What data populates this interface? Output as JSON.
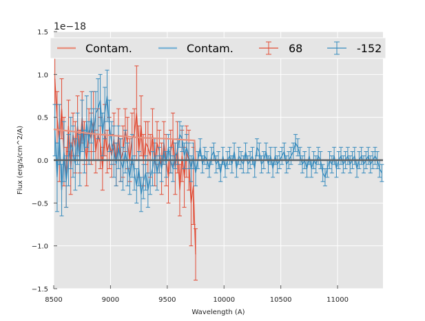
{
  "chart_data": {
    "type": "line",
    "title": "",
    "xlabel": "Wavelength (A)",
    "ylabel": "Flux (erg/s/cm^2/A)",
    "y_offset_label": "1e−18",
    "xlim": [
      8500,
      11400
    ],
    "ylim": [
      -1.5,
      1.5
    ],
    "xticks": [
      8500,
      9000,
      9500,
      10000,
      10500,
      11000
    ],
    "xtick_labels": [
      "8500",
      "9000",
      "9500",
      "10000",
      "10500",
      "11000"
    ],
    "yticks": [
      -1.5,
      -1.0,
      -0.5,
      0.0,
      0.5,
      1.0,
      1.5
    ],
    "ytick_labels": [
      "−1.5",
      "−1.0",
      "−0.5",
      "0.0",
      "0.5",
      "1.0",
      "1.5"
    ],
    "grid": true,
    "legend_position": "top",
    "colors": {
      "red": "#E24A33",
      "blue": "#348ABD",
      "contam_red": "#E8917F",
      "contam_blue": "#7DB4D6",
      "zero": "#555555",
      "background": "#E5E5E5"
    },
    "legend": [
      {
        "label": "Contam.",
        "kind": "line",
        "color": "#E8917F"
      },
      {
        "label": "Contam.",
        "kind": "line",
        "color": "#7DB4D6"
      },
      {
        "label": "68",
        "kind": "errorbar",
        "color": "#E24A33"
      },
      {
        "label": "-152",
        "kind": "errorbar",
        "color": "#348ABD"
      }
    ],
    "series": [
      {
        "name": "68",
        "color": "#E24A33",
        "kind": "errorbar",
        "x": [
          8510,
          8530,
          8550,
          8570,
          8590,
          8610,
          8630,
          8650,
          8670,
          8690,
          8710,
          8730,
          8750,
          8770,
          8790,
          8810,
          8830,
          8850,
          8870,
          8890,
          8910,
          8930,
          8950,
          8970,
          8990,
          9010,
          9030,
          9050,
          9070,
          9090,
          9110,
          9130,
          9150,
          9170,
          9190,
          9210,
          9230,
          9250,
          9270,
          9290,
          9310,
          9330,
          9350,
          9370,
          9390,
          9410,
          9430,
          9450,
          9470,
          9490,
          9510,
          9530,
          9550,
          9570,
          9590,
          9610,
          9630,
          9650,
          9670,
          9690,
          9710,
          9730,
          9750
        ],
        "y": [
          0.95,
          0.5,
          0.2,
          0.6,
          0.1,
          -0.2,
          0.4,
          -0.1,
          0.3,
          0.15,
          0.4,
          0.1,
          0.5,
          0.2,
          0.0,
          0.35,
          0.25,
          0.45,
          0.1,
          0.3,
          0.2,
          -0.1,
          0.35,
          0.1,
          0.2,
          0.05,
          0.25,
          -0.05,
          0.3,
          0.0,
          0.1,
          0.35,
          0.2,
          0.0,
          0.25,
          0.3,
          0.55,
          0.1,
          0.4,
          0.0,
          0.2,
          0.15,
          0.05,
          0.3,
          -0.05,
          0.2,
          0.1,
          -0.1,
          0.2,
          0.0,
          -0.2,
          0.1,
          0.25,
          -0.1,
          0.15,
          -0.35,
          0.05,
          -0.2,
          0.1,
          0.0,
          -0.5,
          -0.3,
          -1.1
        ],
        "yerr": [
          0.3,
          0.3,
          0.45,
          0.35,
          0.4,
          0.35,
          0.3,
          0.3,
          0.25,
          0.3,
          0.35,
          0.25,
          0.3,
          0.25,
          0.3,
          0.25,
          0.3,
          0.35,
          0.25,
          0.3,
          0.3,
          0.25,
          0.3,
          0.25,
          0.3,
          0.25,
          0.3,
          0.25,
          0.3,
          0.25,
          0.3,
          0.25,
          0.3,
          0.25,
          0.3,
          0.3,
          0.55,
          0.3,
          0.35,
          0.3,
          0.25,
          0.3,
          0.25,
          0.3,
          0.25,
          0.25,
          0.25,
          0.3,
          0.25,
          0.3,
          0.3,
          0.25,
          0.3,
          0.3,
          0.3,
          0.3,
          0.3,
          0.35,
          0.3,
          0.35,
          0.5,
          0.45,
          0.3
        ]
      },
      {
        "name": "-152",
        "color": "#348ABD",
        "kind": "errorbar",
        "x": [
          8510,
          8530,
          8550,
          8570,
          8590,
          8610,
          8630,
          8650,
          8670,
          8690,
          8710,
          8730,
          8750,
          8770,
          8790,
          8810,
          8830,
          8850,
          8870,
          8890,
          8910,
          8930,
          8950,
          8970,
          8990,
          9010,
          9030,
          9050,
          9070,
          9090,
          9110,
          9130,
          9150,
          9170,
          9190,
          9210,
          9230,
          9250,
          9270,
          9290,
          9310,
          9330,
          9350,
          9370,
          9390,
          9410,
          9430,
          9450,
          9470,
          9490,
          9510,
          9530,
          9550,
          9570,
          9590,
          9610,
          9630,
          9650,
          9670,
          9690,
          9710,
          9730,
          9750,
          9770,
          9790,
          9810,
          9830,
          9850,
          9870,
          9890,
          9910,
          9930,
          9950,
          9970,
          9990,
          10010,
          10030,
          10050,
          10070,
          10090,
          10110,
          10130,
          10150,
          10170,
          10190,
          10210,
          10230,
          10250,
          10270,
          10290,
          10310,
          10330,
          10350,
          10370,
          10390,
          10410,
          10430,
          10450,
          10470,
          10490,
          10510,
          10530,
          10550,
          10570,
          10590,
          10610,
          10630,
          10650,
          10670,
          10690,
          10710,
          10730,
          10750,
          10770,
          10790,
          10810,
          10830,
          10850,
          10870,
          10890,
          10910,
          10930,
          10950,
          10970,
          10990,
          11010,
          11030,
          11050,
          11070,
          11090,
          11110,
          11130,
          11150,
          11170,
          11190,
          11210,
          11230,
          11250,
          11270,
          11290,
          11310,
          11330,
          11350,
          11370,
          11390
        ],
        "y": [
          0.35,
          -0.2,
          0.3,
          -0.35,
          0.1,
          -0.25,
          0.0,
          0.2,
          0.1,
          -0.05,
          0.25,
          0.0,
          0.4,
          0.1,
          0.45,
          0.2,
          0.5,
          0.3,
          0.55,
          0.6,
          0.7,
          0.3,
          0.55,
          0.75,
          0.4,
          0.2,
          0.1,
          -0.05,
          0.15,
          0.0,
          -0.1,
          0.1,
          -0.05,
          -0.2,
          0.05,
          -0.15,
          -0.3,
          -0.1,
          -0.4,
          -0.25,
          -0.15,
          -0.35,
          -0.2,
          -0.1,
          0.05,
          -0.15,
          0.0,
          -0.1,
          0.1,
          -0.05,
          0.15,
          0.0,
          -0.1,
          0.05,
          0.1,
          0.3,
          0.25,
          0.05,
          0.15,
          0.05,
          -0.1,
          0.05,
          -0.15,
          0.0,
          0.15,
          -0.05,
          0.05,
          0.0,
          -0.1,
          0.05,
          0.1,
          -0.05,
          0.0,
          -0.15,
          0.05,
          -0.1,
          0.0,
          0.05,
          -0.05,
          0.1,
          -0.1,
          0.05,
          0.0,
          -0.05,
          0.1,
          -0.05,
          0.0,
          0.05,
          -0.1,
          0.15,
          0.1,
          -0.05,
          0.0,
          0.1,
          -0.05,
          0.05,
          -0.1,
          0.05,
          -0.05,
          0.0,
          0.05,
          0.1,
          -0.05,
          0.0,
          0.05,
          0.1,
          0.2,
          0.15,
          0.05,
          -0.05,
          0.0,
          -0.1,
          0.05,
          -0.1,
          0.0,
          -0.05,
          0.05,
          0.0,
          -0.15,
          -0.2,
          -0.1,
          0.0,
          -0.05,
          0.05,
          -0.1,
          0.0,
          0.05,
          -0.05,
          0.0,
          0.05,
          -0.05,
          0.0,
          0.05,
          -0.1,
          0.0,
          0.05,
          -0.05,
          0.0,
          0.05,
          -0.05,
          0.0,
          0.05,
          0.0,
          -0.1,
          -0.15
        ],
        "yerr": [
          0.3,
          0.4,
          0.35,
          0.3,
          0.35,
          0.3,
          0.3,
          0.3,
          0.3,
          0.3,
          0.3,
          0.3,
          0.3,
          0.25,
          0.3,
          0.25,
          0.3,
          0.3,
          0.25,
          0.35,
          0.3,
          0.25,
          0.3,
          0.3,
          0.3,
          0.25,
          0.3,
          0.25,
          0.25,
          0.25,
          0.25,
          0.25,
          0.25,
          0.2,
          0.25,
          0.2,
          0.2,
          0.2,
          0.2,
          0.2,
          0.2,
          0.2,
          0.2,
          0.2,
          0.2,
          0.2,
          0.15,
          0.15,
          0.15,
          0.15,
          0.15,
          0.15,
          0.15,
          0.15,
          0.15,
          0.15,
          0.15,
          0.15,
          0.15,
          0.15,
          0.15,
          0.15,
          0.15,
          0.1,
          0.1,
          0.1,
          0.1,
          0.1,
          0.1,
          0.1,
          0.1,
          0.1,
          0.1,
          0.1,
          0.1,
          0.1,
          0.1,
          0.1,
          0.1,
          0.1,
          0.1,
          0.1,
          0.1,
          0.1,
          0.1,
          0.1,
          0.1,
          0.1,
          0.1,
          0.1,
          0.1,
          0.1,
          0.1,
          0.1,
          0.1,
          0.1,
          0.1,
          0.1,
          0.1,
          0.1,
          0.1,
          0.1,
          0.1,
          0.1,
          0.1,
          0.1,
          0.1,
          0.1,
          0.1,
          0.1,
          0.1,
          0.1,
          0.1,
          0.1,
          0.1,
          0.1,
          0.1,
          0.1,
          0.1,
          0.1,
          0.1,
          0.1,
          0.1,
          0.1,
          0.1,
          0.1,
          0.1,
          0.1,
          0.1,
          0.1,
          0.1,
          0.1,
          0.1,
          0.1,
          0.1,
          0.1,
          0.1,
          0.1,
          0.1,
          0.1,
          0.1,
          0.1,
          0.1,
          0.1,
          0.1
        ]
      },
      {
        "name": "Contam.",
        "color": "#E8917F",
        "kind": "line",
        "x": [
          8500,
          8700,
          8900,
          9100,
          9300,
          9500,
          9740,
          9750,
          11400
        ],
        "y": [
          0.36,
          0.33,
          0.3,
          0.28,
          0.26,
          0.25,
          0.23,
          0.0,
          0.0
        ]
      },
      {
        "name": "Contam.",
        "color": "#7DB4D6",
        "kind": "line",
        "x": [
          8500,
          9000,
          9500,
          10000,
          10500,
          11000,
          11400
        ],
        "y": [
          0.0,
          0.0,
          0.0,
          0.0,
          0.0,
          0.0,
          0.0
        ]
      }
    ]
  }
}
